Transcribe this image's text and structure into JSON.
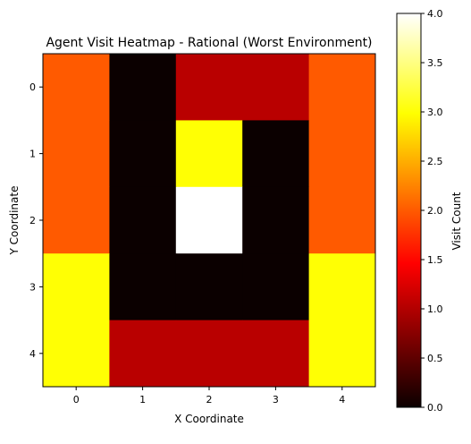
{
  "chart_data": {
    "type": "heatmap",
    "title": "Agent Visit Heatmap - Rational (Worst Environment)",
    "xlabel": "X Coordinate",
    "ylabel": "Y Coordinate",
    "x_ticks": [
      "0",
      "1",
      "2",
      "3",
      "4"
    ],
    "y_ticks": [
      "0",
      "1",
      "2",
      "3",
      "4"
    ],
    "values": [
      [
        2,
        0,
        1,
        1,
        2
      ],
      [
        2,
        0,
        3,
        0,
        2
      ],
      [
        2,
        0,
        4,
        0,
        2
      ],
      [
        3,
        0,
        0,
        0,
        3
      ],
      [
        3,
        1,
        1,
        1,
        3
      ]
    ],
    "colormap": "hot",
    "vmin": 0,
    "vmax": 4,
    "colorbar": {
      "label": "Visit Count",
      "ticks": [
        "0.0",
        "0.5",
        "1.0",
        "1.5",
        "2.0",
        "2.5",
        "3.0",
        "3.5",
        "4.0"
      ]
    }
  }
}
